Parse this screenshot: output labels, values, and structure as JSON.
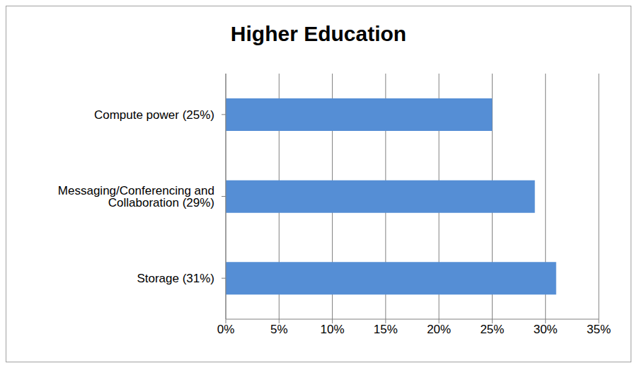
{
  "chart_data": {
    "type": "bar",
    "title": "Higher Education",
    "orientation": "horizontal",
    "categories": [
      "Compute power (25%)",
      "Messaging/Conferencing and Collaboration (29%)",
      "Storage (31%)"
    ],
    "values": [
      25,
      29,
      31
    ],
    "color": "#558ed5",
    "xlim": [
      0,
      35
    ],
    "xticks": [
      {
        "value": 0,
        "label": "0%"
      },
      {
        "value": 5,
        "label": "5%"
      },
      {
        "value": 10,
        "label": "10%"
      },
      {
        "value": 15,
        "label": "15%"
      },
      {
        "value": 20,
        "label": "20%"
      },
      {
        "value": 25,
        "label": "25%"
      },
      {
        "value": 30,
        "label": "30%"
      },
      {
        "value": 35,
        "label": "35%"
      }
    ],
    "grid": true
  }
}
